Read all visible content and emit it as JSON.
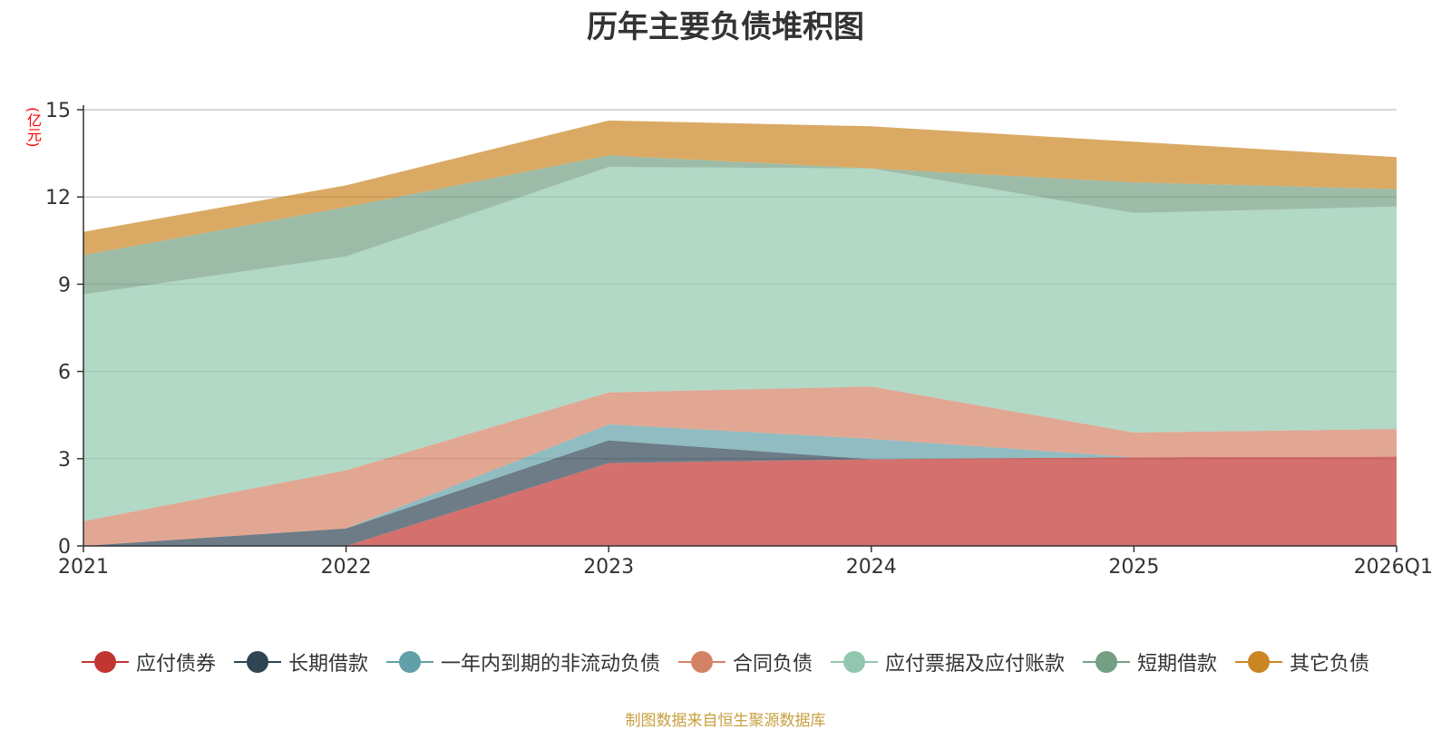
{
  "chart_data": {
    "type": "area",
    "title": "历年主要负债堆积图",
    "ylabel": "(亿元)",
    "xlabel": "",
    "categories": [
      "2021",
      "2022",
      "2023",
      "2024",
      "2025",
      "2026Q1"
    ],
    "ylim": [
      0,
      15
    ],
    "yticks": [
      "0",
      "3",
      "6",
      "9",
      "12",
      "15"
    ],
    "stacked": true,
    "grid": true,
    "legend_position": "bottom",
    "series": [
      {
        "name": "应付债券",
        "color": "#c23531",
        "values": [
          0,
          0,
          2.85,
          2.98,
          3.05,
          3.07
        ]
      },
      {
        "name": "长期借款",
        "color": "#2f4554",
        "values": [
          0,
          0.6,
          0.78,
          0,
          0,
          0
        ]
      },
      {
        "name": "一年内到期的非流动负债",
        "color": "#61a0a8",
        "values": [
          0,
          0,
          0.55,
          0.7,
          0,
          0
        ]
      },
      {
        "name": "合同负债",
        "color": "#d48265",
        "values": [
          0.85,
          2.0,
          1.1,
          1.8,
          0.85,
          0.95
        ]
      },
      {
        "name": "应付票据及应付账款",
        "color": "#91c7ae",
        "values": [
          7.8,
          7.35,
          7.75,
          7.5,
          7.55,
          7.65
        ]
      },
      {
        "name": "短期借款",
        "color": "#749f83",
        "values": [
          1.35,
          1.7,
          0.4,
          0,
          1.05,
          0.6
        ]
      },
      {
        "name": "其它负债",
        "color": "#ca8622",
        "values": [
          0.8,
          0.75,
          1.2,
          1.45,
          1.4,
          1.1
        ]
      }
    ]
  },
  "footer": {
    "source": "制图数据来自恒生聚源数据库"
  }
}
